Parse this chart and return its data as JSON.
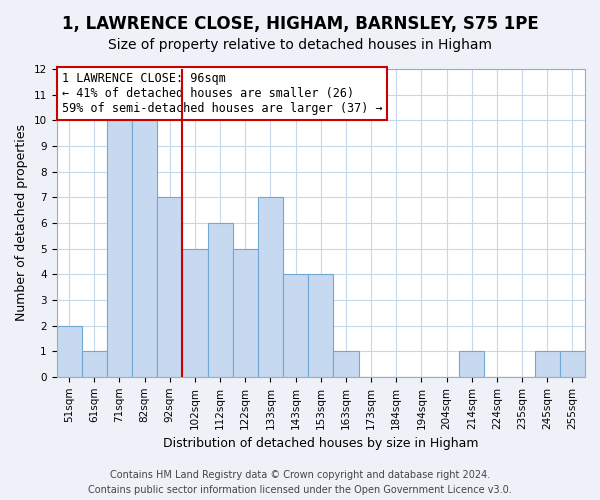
{
  "title": "1, LAWRENCE CLOSE, HIGHAM, BARNSLEY, S75 1PE",
  "subtitle": "Size of property relative to detached houses in Higham",
  "xlabel": "Distribution of detached houses by size in Higham",
  "ylabel": "Number of detached properties",
  "bin_labels": [
    "51sqm",
    "61sqm",
    "71sqm",
    "82sqm",
    "92sqm",
    "102sqm",
    "112sqm",
    "122sqm",
    "133sqm",
    "143sqm",
    "153sqm",
    "163sqm",
    "173sqm",
    "184sqm",
    "194sqm",
    "204sqm",
    "214sqm",
    "224sqm",
    "235sqm",
    "245sqm",
    "255sqm"
  ],
  "counts": [
    2,
    1,
    10,
    10,
    7,
    5,
    6,
    5,
    7,
    4,
    4,
    1,
    0,
    0,
    0,
    0,
    1,
    0,
    0,
    1,
    1
  ],
  "bar_color": "#c7d9f0",
  "bar_edge_color": "#6fa8d4",
  "vline_x": 4.5,
  "vline_color": "#cc0000",
  "annotation_lines": [
    "1 LAWRENCE CLOSE: 96sqm",
    "← 41% of detached houses are smaller (26)",
    "59% of semi-detached houses are larger (37) →"
  ],
  "annotation_box_color": "#ffffff",
  "annotation_box_edge": "#cc0000",
  "ylim": [
    0,
    12
  ],
  "yticks": [
    0,
    1,
    2,
    3,
    4,
    5,
    6,
    7,
    8,
    9,
    10,
    11,
    12
  ],
  "footer_line1": "Contains HM Land Registry data © Crown copyright and database right 2024.",
  "footer_line2": "Contains public sector information licensed under the Open Government Licence v3.0.",
  "bg_color": "#eef2f8",
  "plot_bg_color": "#ffffff",
  "grid_color": "#c8d8ec",
  "title_fontsize": 12,
  "subtitle_fontsize": 10,
  "axis_label_fontsize": 9,
  "tick_fontsize": 7.5,
  "annotation_fontsize": 8.5,
  "footer_fontsize": 7
}
